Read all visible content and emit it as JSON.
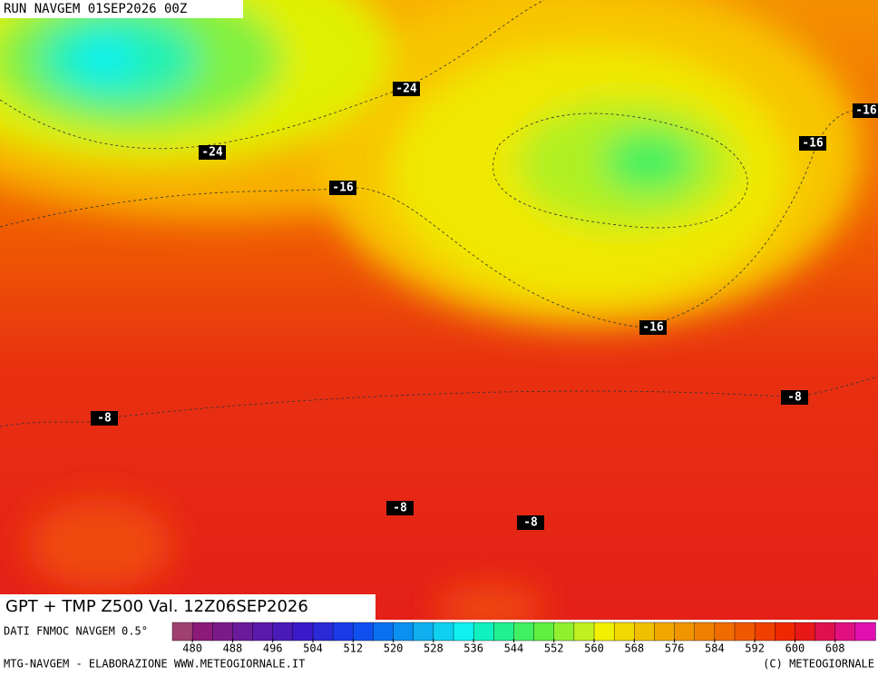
{
  "header": "RUN NAVGEM 01SEP2026 00Z",
  "title": "GPT + TMP Z500 Val. 12Z06SEP2026",
  "source": "DATI FNMOC NAVGEM 0.5°",
  "footer_left": "MTG-NAVGEM - ELABORAZIONE WWW.METEOGIORNALE.IT",
  "footer_right": "(C) METEOGIORNALE",
  "colorbar": {
    "lim": [
      476,
      616
    ],
    "ticks": [
      480,
      488,
      496,
      504,
      512,
      520,
      528,
      536,
      544,
      552,
      560,
      568,
      576,
      584,
      592,
      600,
      608
    ],
    "colors": [
      "#a0406e",
      "#8b1a7a",
      "#7a1a8a",
      "#6a1a9a",
      "#5a1aaa",
      "#4a1ab8",
      "#3a1ac8",
      "#2a2ad8",
      "#1a3ae8",
      "#1050f0",
      "#0a70f0",
      "#0a90f0",
      "#10b0f0",
      "#10d0f0",
      "#10f0f0",
      "#10f0c0",
      "#20f090",
      "#40f060",
      "#60f040",
      "#90f030",
      "#c0f020",
      "#f0f000",
      "#f0d800",
      "#f0c000",
      "#f0a800",
      "#f09400",
      "#f08000",
      "#f06c00",
      "#f05800",
      "#f04000",
      "#f02800",
      "#e81818",
      "#e01050",
      "#e01080",
      "#e010b0"
    ]
  },
  "contour_labels": [
    "-24",
    "-24",
    "-16",
    "-16",
    "-16",
    "-16",
    "-8",
    "-8",
    "-8",
    "-8"
  ]
}
